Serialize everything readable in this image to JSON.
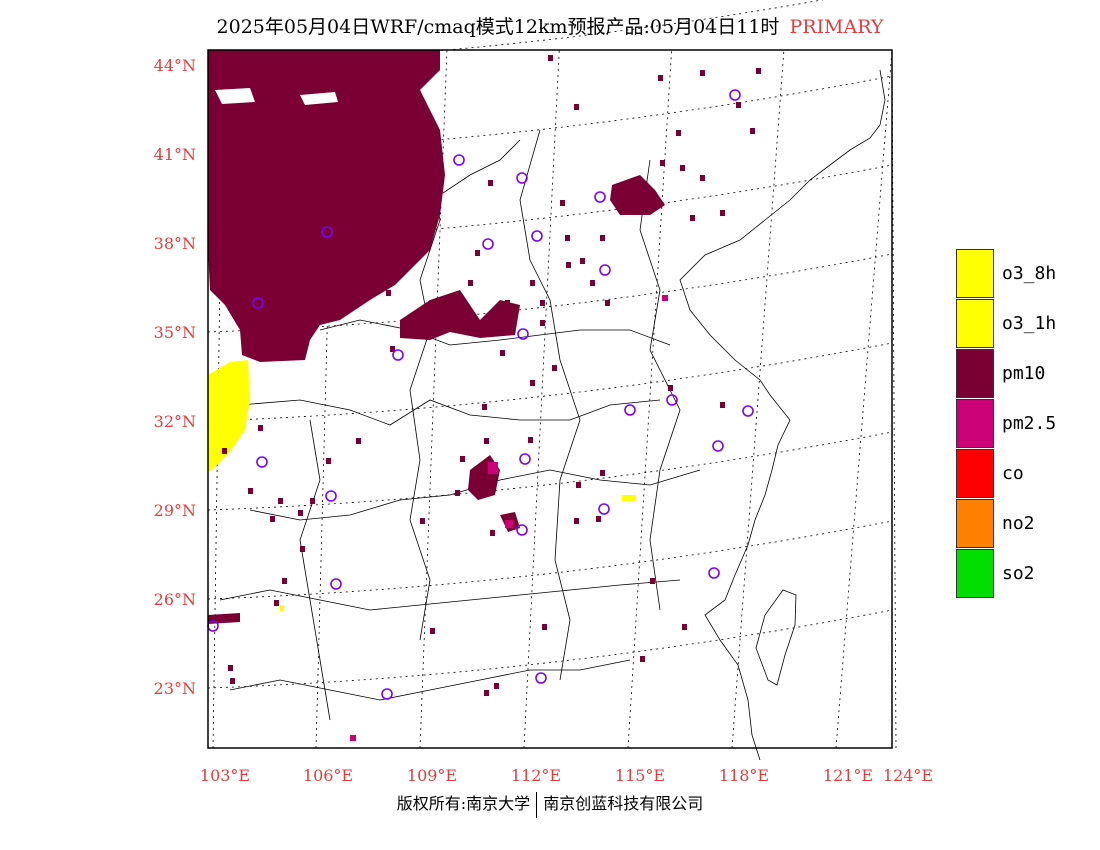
{
  "title": {
    "main": "2025年05月04日WRF/cmaq模式12km预报产品:05月04日11时",
    "tag": "PRIMARY"
  },
  "map": {
    "lat_labels": [
      "44°N",
      "41°N",
      "38°N",
      "35°N",
      "32°N",
      "29°N",
      "26°N",
      "23°N"
    ],
    "lon_labels": [
      "103°E",
      "106°E",
      "109°E",
      "112°E",
      "115°E",
      "118°E",
      "121°E",
      "124°E"
    ],
    "colors": {
      "pm10": "#7a0033",
      "pm25": "#cc0077",
      "o3": "#ffff00",
      "station": "#7b00ff",
      "label": "#e83a3a"
    }
  },
  "legend": [
    {
      "label": "o3_8h",
      "color": "#ffff00"
    },
    {
      "label": "o3_1h",
      "color": "#ffff00"
    },
    {
      "label": "pm10",
      "color": "#7a0033"
    },
    {
      "label": "pm2.5",
      "color": "#cc0077"
    },
    {
      "label": "co",
      "color": "#ff0000"
    },
    {
      "label": "no2",
      "color": "#ff8000"
    },
    {
      "label": "so2",
      "color": "#00dd00"
    }
  ],
  "footer": {
    "left": "版权所有:南京大学",
    "right": "南京创蓝科技有限公司"
  }
}
